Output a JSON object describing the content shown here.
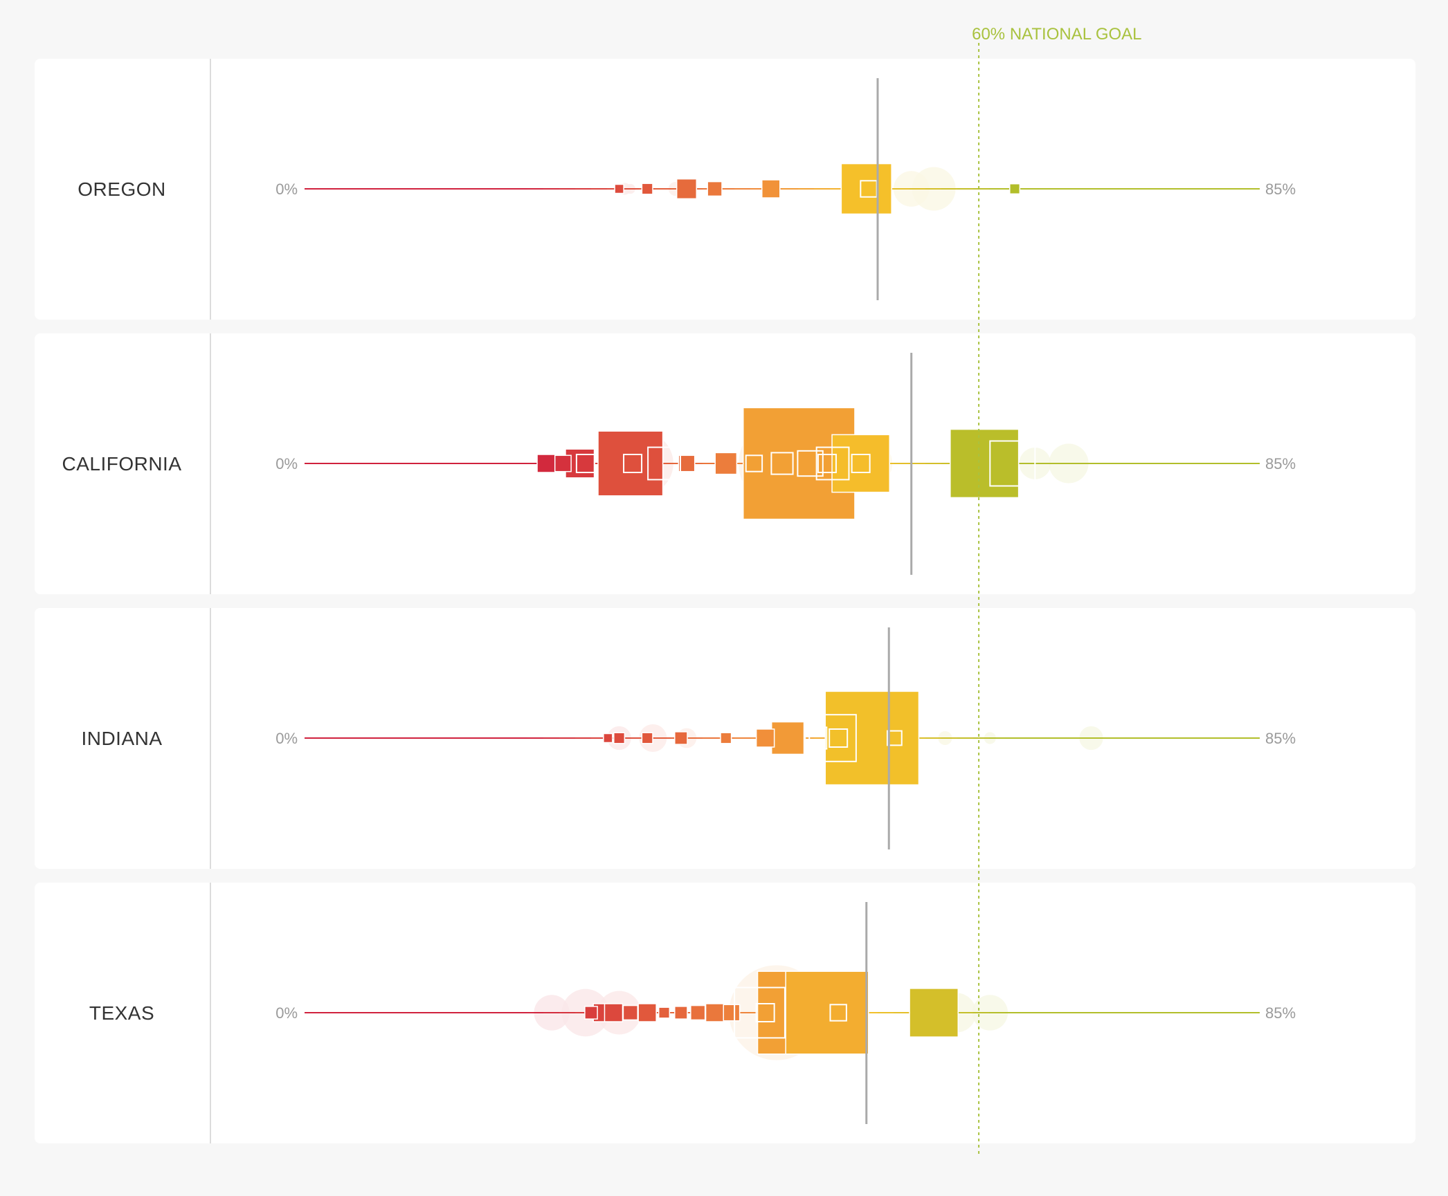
{
  "chart_data": {
    "type": "scatter",
    "description_axis": "attainment rate",
    "xlim": [
      0,
      85
    ],
    "axis_min_label": "0%",
    "axis_max_label": "85%",
    "goal": {
      "value": 60,
      "label": "60% NATIONAL GOAL",
      "color": "#a9c23f"
    },
    "colors": {
      "low": "#d0213d",
      "mid": "#f08a3c",
      "high": "#f5c02a",
      "top": "#b2be2a",
      "average_line": "#aaaaaa"
    },
    "states": [
      {
        "name": "OREGON",
        "average": 51,
        "markers": [
          {
            "x": 28,
            "size": 0.25
          },
          {
            "x": 30.5,
            "size": 0.3
          },
          {
            "x": 34,
            "size": 0.55
          },
          {
            "x": 36.5,
            "size": 0.4
          },
          {
            "x": 41.5,
            "size": 0.5
          },
          {
            "x": 50,
            "size": 1.4
          },
          {
            "x": 50.2,
            "size": 0.45,
            "outline": true
          },
          {
            "x": 63.2,
            "size": 0.28
          }
        ],
        "bubbles": [
          {
            "x": 28.5,
            "size": 0.3
          },
          {
            "x": 29,
            "size": 0.25
          },
          {
            "x": 33,
            "size": 0.35
          },
          {
            "x": 54,
            "size": 0.9
          },
          {
            "x": 56,
            "size": 1.1
          }
        ]
      },
      {
        "name": "CALIFORNIA",
        "average": 54,
        "markers": [
          {
            "x": 21.5,
            "size": 0.5
          },
          {
            "x": 23,
            "size": 0.45
          },
          {
            "x": 24.5,
            "size": 0.8
          },
          {
            "x": 25,
            "size": 0.5,
            "outline": true
          },
          {
            "x": 29,
            "size": 1.8
          },
          {
            "x": 29.2,
            "size": 0.5,
            "outline": true
          },
          {
            "x": 32,
            "size": 0.9,
            "outline": true
          },
          {
            "x": 34,
            "size": 0.45
          },
          {
            "x": 37.5,
            "size": 0.6
          },
          {
            "x": 40,
            "size": 0.45,
            "outline": true
          },
          {
            "x": 44,
            "size": 3.1
          },
          {
            "x": 42.5,
            "size": 0.6,
            "outline": true
          },
          {
            "x": 45,
            "size": 0.7,
            "outline": true
          },
          {
            "x": 46.5,
            "size": 0.5,
            "outline": true
          },
          {
            "x": 47,
            "size": 0.9,
            "outline": true
          },
          {
            "x": 49.5,
            "size": 1.6
          },
          {
            "x": 49.5,
            "size": 0.5,
            "outline": true
          },
          {
            "x": 60.5,
            "size": 1.9
          },
          {
            "x": 63,
            "size": 1.25,
            "outline": true
          }
        ],
        "bubbles": [
          {
            "x": 30,
            "size": 1.6
          },
          {
            "x": 29,
            "size": 0.9
          },
          {
            "x": 42.5,
            "size": 2.2
          },
          {
            "x": 50,
            "size": 1.3
          },
          {
            "x": 68,
            "size": 1.0
          },
          {
            "x": 65,
            "size": 0.8
          }
        ]
      },
      {
        "name": "INDIANA",
        "average": 52,
        "markers": [
          {
            "x": 27,
            "size": 0.25
          },
          {
            "x": 28,
            "size": 0.3
          },
          {
            "x": 30.5,
            "size": 0.3
          },
          {
            "x": 33.5,
            "size": 0.35
          },
          {
            "x": 37.5,
            "size": 0.3
          },
          {
            "x": 41,
            "size": 0.5
          },
          {
            "x": 43,
            "size": 0.9
          },
          {
            "x": 45.5,
            "size": 0.6,
            "outline": true
          },
          {
            "x": 50.5,
            "size": 2.6
          },
          {
            "x": 47,
            "size": 1.3,
            "outline": true
          },
          {
            "x": 47.5,
            "size": 0.5,
            "outline": true
          },
          {
            "x": 52.5,
            "size": 0.4,
            "outline": true
          }
        ],
        "bubbles": [
          {
            "x": 28,
            "size": 0.6
          },
          {
            "x": 31,
            "size": 0.7
          },
          {
            "x": 34,
            "size": 0.5
          },
          {
            "x": 57,
            "size": 0.35
          },
          {
            "x": 61,
            "size": 0.3
          },
          {
            "x": 70,
            "size": 0.6
          }
        ]
      },
      {
        "name": "TEXAS",
        "average": 50,
        "markers": [
          {
            "x": 25.5,
            "size": 0.35
          },
          {
            "x": 26.5,
            "size": 0.5
          },
          {
            "x": 27.5,
            "size": 0.5
          },
          {
            "x": 29,
            "size": 0.4
          },
          {
            "x": 30.5,
            "size": 0.5
          },
          {
            "x": 32,
            "size": 0.3
          },
          {
            "x": 33.5,
            "size": 0.35
          },
          {
            "x": 35,
            "size": 0.4
          },
          {
            "x": 36.5,
            "size": 0.5
          },
          {
            "x": 38,
            "size": 0.45
          },
          {
            "x": 44,
            "size": 2.3
          },
          {
            "x": 40.5,
            "size": 1.4,
            "outline": true
          },
          {
            "x": 41,
            "size": 0.5,
            "outline": true
          },
          {
            "x": 46.5,
            "size": 2.3
          },
          {
            "x": 47.5,
            "size": 0.45,
            "outline": true
          },
          {
            "x": 56,
            "size": 1.35
          }
        ],
        "bubbles": [
          {
            "x": 22,
            "size": 0.9
          },
          {
            "x": 25,
            "size": 1.2
          },
          {
            "x": 28,
            "size": 1.1
          },
          {
            "x": 42,
            "size": 2.4
          },
          {
            "x": 58,
            "size": 1.0
          },
          {
            "x": 61,
            "size": 0.9
          }
        ]
      }
    ]
  }
}
